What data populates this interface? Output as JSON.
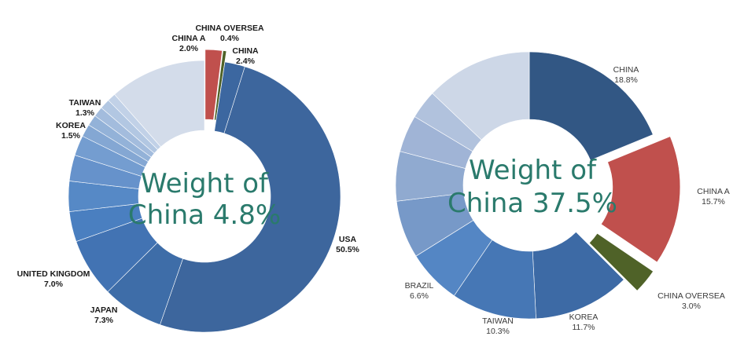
{
  "colors": {
    "center_text": "#2a7a6c"
  },
  "chart_data": [
    {
      "type": "donut",
      "center_text": [
        "Weight of",
        "China 4.8%"
      ],
      "slices": [
        {
          "label": "CHINA A",
          "value_text": "2.0%",
          "value": 2.0,
          "color": "#c0504d",
          "exploded": true,
          "label_side": "left"
        },
        {
          "label": "CHINA OVERSEA",
          "value_text": "0.4%",
          "value": 0.4,
          "color": "#4f6228",
          "exploded": true,
          "label_side": "center"
        },
        {
          "label": "CHINA",
          "value_text": "2.4%",
          "value": 2.4,
          "color": "#3c67a0",
          "exploded": false,
          "label_side": "right"
        },
        {
          "label": "USA",
          "value_text": "50.5%",
          "value": 50.5,
          "color": "#3d669d",
          "exploded": false,
          "label_side": "right"
        },
        {
          "label": "JAPAN",
          "value_text": "7.3%",
          "value": 7.3,
          "color": "#3e6da8",
          "exploded": false,
          "label_side": "left"
        },
        {
          "label": "UNITED KINGDOM",
          "value_text": "7.0%",
          "value": 7.0,
          "color": "#4273b3",
          "exploded": false,
          "label_side": "left"
        },
        {
          "label": "",
          "value_text": "",
          "value": 3.6,
          "color": "#4a7fc0",
          "exploded": false
        },
        {
          "label": "",
          "value_text": "",
          "value": 3.6,
          "color": "#5689c6",
          "exploded": false
        },
        {
          "label": "",
          "value_text": "",
          "value": 3.1,
          "color": "#6692cb",
          "exploded": false
        },
        {
          "label": "",
          "value_text": "",
          "value": 2.4,
          "color": "#749dd0",
          "exploded": false
        },
        {
          "label": "KOREA",
          "value_text": "1.5%",
          "value": 1.5,
          "color": "#84a7d3",
          "exploded": false,
          "label_side": "left"
        },
        {
          "label": "TAIWAN",
          "value_text": "1.3%",
          "value": 1.3,
          "color": "#93b2d8",
          "exploded": false,
          "label_side": "left"
        },
        {
          "label": "",
          "value_text": "",
          "value": 1.2,
          "color": "#a3bcdd",
          "exploded": false
        },
        {
          "label": "",
          "value_text": "",
          "value": 1.2,
          "color": "#b2c7e2",
          "exploded": false
        },
        {
          "label": "",
          "value_text": "",
          "value": 1.0,
          "color": "#c1d1e7",
          "exploded": false
        },
        {
          "label": "",
          "value_text": "",
          "value": 11.5,
          "color": "#d3dcea",
          "exploded": false
        }
      ]
    },
    {
      "type": "donut",
      "center_text": [
        "Weight of",
        "China 37.5%"
      ],
      "slices": [
        {
          "label": "CHINA",
          "value_text": "18.8%",
          "value": 18.8,
          "color": "#325784",
          "exploded": false,
          "label_side": "right"
        },
        {
          "label": "CHINA A",
          "value_text": "15.7%",
          "value": 15.7,
          "color": "#c0504d",
          "exploded": true,
          "label_side": "right"
        },
        {
          "label": "CHINA OVERSEA",
          "value_text": "3.0%",
          "value": 3.0,
          "color": "#4f6228",
          "exploded": true,
          "label_side": "right"
        },
        {
          "label": "KOREA",
          "value_text": "11.7%",
          "value": 11.7,
          "color": "#3d6aa5",
          "exploded": false,
          "label_side": "right"
        },
        {
          "label": "TAIWAN",
          "value_text": "10.3%",
          "value": 10.3,
          "color": "#4677b5",
          "exploded": false,
          "label_side": "left"
        },
        {
          "label": "BRAZIL",
          "value_text": "6.6%",
          "value": 6.6,
          "color": "#5486c4",
          "exploded": false,
          "label_side": "left"
        },
        {
          "label": "",
          "value_text": "",
          "value": 7.0,
          "color": "#7799c8",
          "exploded": false
        },
        {
          "label": "",
          "value_text": "",
          "value": 6.0,
          "color": "#90aad0",
          "exploded": false
        },
        {
          "label": "",
          "value_text": "",
          "value": 4.5,
          "color": "#a0b4d6",
          "exploded": false
        },
        {
          "label": "",
          "value_text": "",
          "value": 3.5,
          "color": "#b1c2dd",
          "exploded": false
        },
        {
          "label": "",
          "value_text": "",
          "value": 12.9,
          "color": "#cdd7e7",
          "exploded": false
        }
      ]
    }
  ]
}
